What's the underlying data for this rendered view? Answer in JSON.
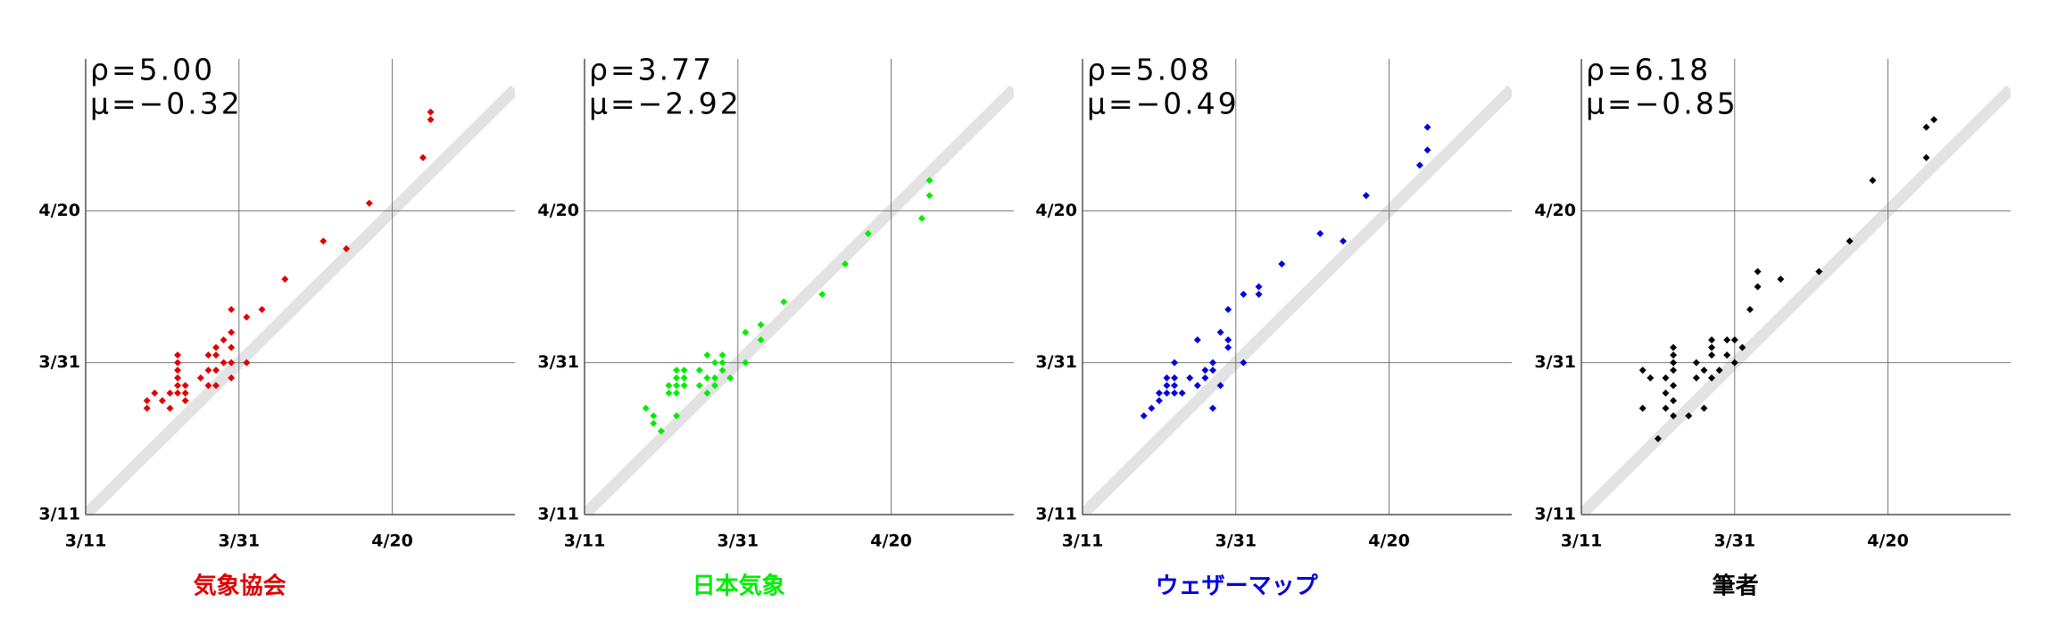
{
  "chart_data": [
    {
      "type": "scatter",
      "title": "気象協会",
      "color": "#e00000",
      "annotations": [
        "ρ=5.00",
        "μ=−0.32"
      ],
      "x": [
        78,
        78,
        79,
        80,
        81,
        81,
        82,
        82,
        82,
        82,
        82,
        82,
        83,
        83,
        83,
        85,
        86,
        86,
        86,
        87,
        87,
        87,
        87,
        88,
        88,
        89,
        89,
        89,
        89,
        89,
        91,
        91,
        93,
        96,
        101,
        104,
        107,
        114,
        115,
        115
      ],
      "y": [
        84,
        85,
        86,
        85,
        84,
        86,
        87,
        86,
        88,
        89,
        90,
        91,
        87,
        86,
        85,
        88,
        87,
        91,
        89,
        87,
        91,
        89,
        92,
        90,
        93,
        88,
        90,
        92,
        94,
        97,
        90,
        96,
        97,
        101,
        106,
        105,
        111,
        117,
        122,
        123
      ],
      "xlim": [
        70,
        126
      ],
      "ylim": [
        70,
        130
      ],
      "xticks": [
        {
          "value": 70,
          "label": "3/11"
        },
        {
          "value": 90,
          "label": "3/31"
        },
        {
          "value": 110,
          "label": "4/20"
        }
      ],
      "yticks": [
        {
          "value": 70,
          "label": "3/11"
        },
        {
          "value": 90,
          "label": "3/31"
        },
        {
          "value": 110,
          "label": "4/20"
        }
      ]
    },
    {
      "type": "scatter",
      "title": "日本気象",
      "color": "#00ee00",
      "annotations": [
        "ρ=3.77",
        "μ=−2.92"
      ],
      "x": [
        78,
        79,
        79,
        80,
        81,
        81,
        82,
        82,
        82,
        82,
        82,
        83,
        83,
        83,
        85,
        85,
        86,
        86,
        86,
        87,
        87,
        87,
        88,
        88,
        88,
        89,
        91,
        91,
        93,
        93,
        96,
        101,
        104,
        107,
        114,
        115,
        115
      ],
      "y": [
        84,
        83,
        82,
        81,
        87,
        86,
        88,
        87,
        86,
        89,
        83,
        87,
        88,
        89,
        89,
        87,
        88,
        91,
        86,
        90,
        87,
        88,
        89,
        90,
        91,
        88,
        90,
        94,
        93,
        95,
        98,
        99,
        103,
        107,
        109,
        114,
        112
      ],
      "xlim": [
        70,
        126
      ],
      "ylim": [
        70,
        130
      ],
      "xticks": [
        {
          "value": 70,
          "label": "3/11"
        },
        {
          "value": 90,
          "label": "3/31"
        },
        {
          "value": 110,
          "label": "4/20"
        }
      ],
      "yticks": [
        {
          "value": 70,
          "label": "3/11"
        },
        {
          "value": 90,
          "label": "3/31"
        },
        {
          "value": 110,
          "label": "4/20"
        }
      ]
    },
    {
      "type": "scatter",
      "title": "ウェザーマップ",
      "color": "#0000dd",
      "annotations": [
        "ρ=5.08",
        "μ=−0.49"
      ],
      "x": [
        78,
        79,
        80,
        80,
        81,
        81,
        81,
        82,
        82,
        82,
        82,
        83,
        84,
        85,
        85,
        86,
        86,
        87,
        87,
        87,
        88,
        88,
        89,
        89,
        89,
        91,
        91,
        93,
        93,
        96,
        101,
        104,
        107,
        114,
        115,
        115
      ],
      "y": [
        83,
        84,
        86,
        85,
        87,
        88,
        86,
        87,
        90,
        88,
        86,
        86,
        88,
        87,
        93,
        89,
        88,
        90,
        84,
        89,
        87,
        94,
        93,
        92,
        97,
        90,
        99,
        99,
        100,
        103,
        107,
        106,
        112,
        116,
        118,
        121
      ],
      "xlim": [
        70,
        126
      ],
      "ylim": [
        70,
        130
      ],
      "xticks": [
        {
          "value": 70,
          "label": "3/11"
        },
        {
          "value": 90,
          "label": "3/31"
        },
        {
          "value": 110,
          "label": "4/20"
        }
      ],
      "yticks": [
        {
          "value": 70,
          "label": "3/11"
        },
        {
          "value": 90,
          "label": "3/31"
        },
        {
          "value": 110,
          "label": "4/20"
        }
      ]
    },
    {
      "type": "scatter",
      "title": "筆者",
      "color": "#000000",
      "annotations": [
        "ρ=6.18",
        "μ=−0.85"
      ],
      "x": [
        78,
        78,
        79,
        80,
        81,
        81,
        81,
        82,
        82,
        82,
        82,
        82,
        82,
        82,
        84,
        85,
        85,
        86,
        86,
        87,
        87,
        87,
        87,
        88,
        89,
        89,
        90,
        90,
        91,
        92,
        93,
        93,
        96,
        101,
        105,
        108,
        115,
        115,
        116
      ],
      "y": [
        89,
        84,
        88,
        80,
        88,
        86,
        84,
        92,
        91,
        90,
        89,
        87,
        85,
        83,
        83,
        90,
        88,
        89,
        84,
        91,
        93,
        88,
        92,
        89,
        93,
        91,
        93,
        90,
        92,
        97,
        102,
        100,
        101,
        102,
        106,
        114,
        117,
        121,
        122
      ],
      "xlim": [
        70,
        126
      ],
      "ylim": [
        70,
        130
      ],
      "xticks": [
        {
          "value": 70,
          "label": "3/11"
        },
        {
          "value": 90,
          "label": "3/31"
        },
        {
          "value": 110,
          "label": "4/20"
        }
      ],
      "yticks": [
        {
          "value": 70,
          "label": "3/11"
        },
        {
          "value": 90,
          "label": "3/31"
        },
        {
          "value": 110,
          "label": "4/20"
        }
      ]
    }
  ]
}
